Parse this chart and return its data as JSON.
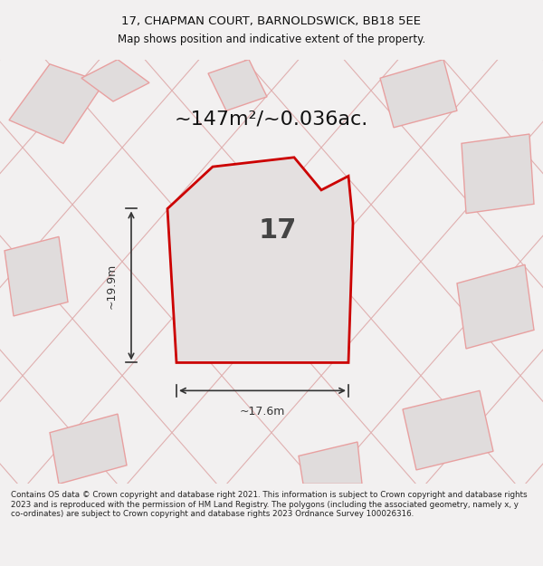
{
  "title_line1": "17, CHAPMAN COURT, BARNOLDSWICK, BB18 5EE",
  "title_line2": "Map shows position and indicative extent of the property.",
  "area_text": "~147m²/~0.036ac.",
  "plot_number": "17",
  "dim_width": "~17.6m",
  "dim_height": "~19.9m",
  "footer_text": "Contains OS data © Crown copyright and database right 2021. This information is subject to Crown copyright and database rights 2023 and is reproduced with the permission of HM Land Registry. The polygons (including the associated geometry, namely x, y co-ordinates) are subject to Crown copyright and database rights 2023 Ordnance Survey 100026316.",
  "bg_color": "#f2f0f0",
  "map_bg_color": "#f2f0f0",
  "plot_fill": "#e4e0e0",
  "plot_edge_color": "#cc0000",
  "other_plots_fill": "#e0dcdc",
  "other_plots_edge": "#e8a0a0",
  "road_line_color": "#e0b0b0",
  "text_color": "#111111",
  "footer_color": "#222222",
  "dim_line_color": "#333333"
}
